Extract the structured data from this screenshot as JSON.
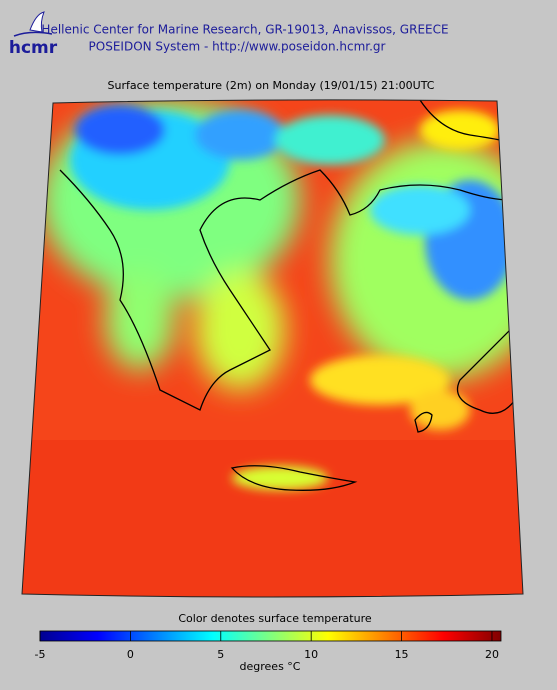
{
  "header": {
    "logo": "hcmr",
    "line1": "Hellenic Center for Marine Research, GR-19013, Anavissos, GREECE",
    "line2": "POSEIDON System - http://www.poseidon.hcmr.gr"
  },
  "map": {
    "title": "Surface temperature (2m) on Monday (19/01/15) 21:00UTC"
  },
  "colorbar": {
    "title": "Color denotes surface temperature",
    "label": "degrees °C",
    "lim": [
      -5,
      20.5
    ],
    "ticks": [
      -5,
      0,
      5,
      10,
      15,
      20
    ]
  }
}
